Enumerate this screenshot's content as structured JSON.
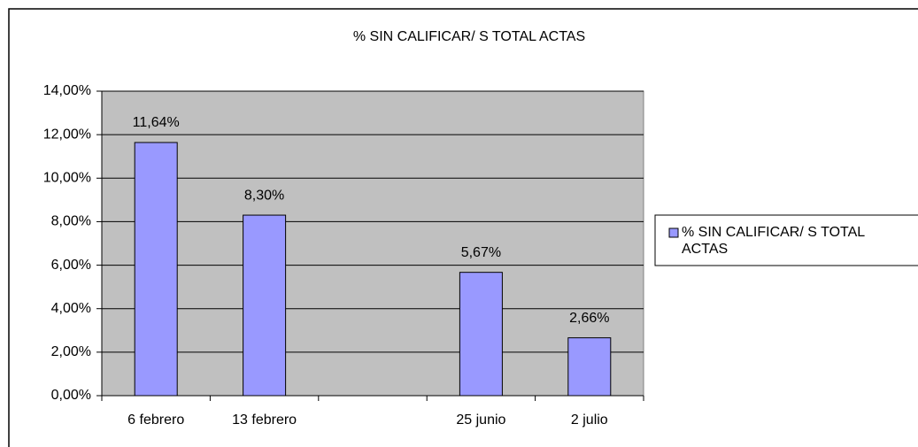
{
  "chart_data": {
    "type": "bar",
    "title": "% SIN CALIFICAR/ S TOTAL ACTAS",
    "categories": [
      "6 febrero",
      "13 febrero",
      null,
      "25 junio",
      "2 julio"
    ],
    "series": [
      {
        "name": "% SIN CALIFICAR/ S TOTAL ACTAS",
        "color": "#9999ff",
        "values": [
          11.64,
          8.3,
          null,
          5.67,
          2.66
        ],
        "value_labels": [
          "11,64%",
          "8,30%",
          null,
          "5,67%",
          "2,66%"
        ]
      }
    ],
    "ylim": [
      0,
      14
    ],
    "yticks": [
      {
        "value": 0,
        "label": "0,00%"
      },
      {
        "value": 2,
        "label": "2,00%"
      },
      {
        "value": 4,
        "label": "4,00%"
      },
      {
        "value": 6,
        "label": "6,00%"
      },
      {
        "value": 8,
        "label": "8,00%"
      },
      {
        "value": 10,
        "label": "10,00%"
      },
      {
        "value": 12,
        "label": "12,00%"
      },
      {
        "value": 14,
        "label": "14,00%"
      }
    ],
    "grid": true,
    "legend": "right",
    "plot_background": "#c0c0c0"
  }
}
